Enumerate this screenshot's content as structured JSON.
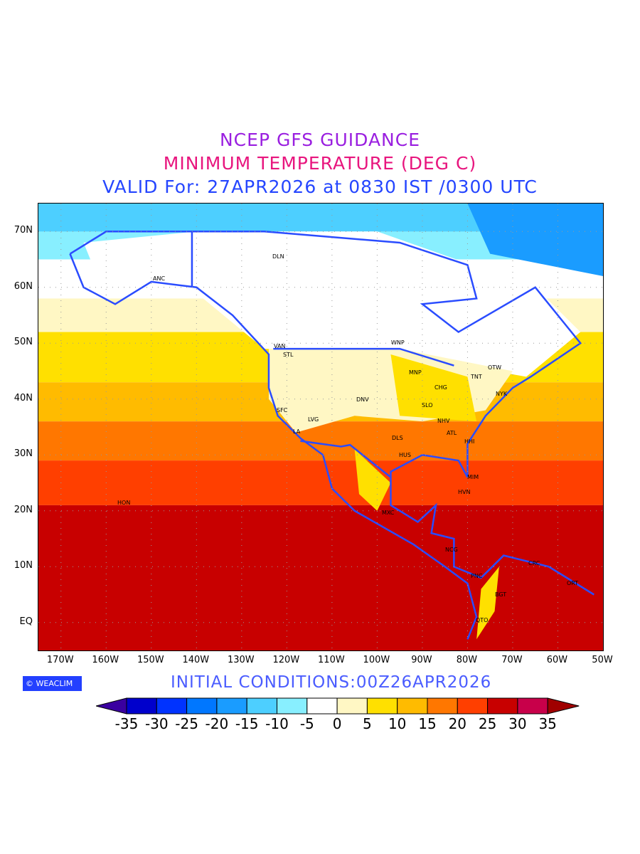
{
  "title": {
    "line1": "NCEP GFS GUIDANCE",
    "line2": "MINIMUM TEMPERATURE (DEG C)",
    "line3": "VALID For: 27APR2026 at 0830 IST /0300 UTC"
  },
  "axes": {
    "lat_labels": [
      "70N",
      "60N",
      "50N",
      "40N",
      "30N",
      "20N",
      "10N",
      "EQ"
    ],
    "lon_labels": [
      "170W",
      "160W",
      "150W",
      "140W",
      "130W",
      "120W",
      "110W",
      "100W",
      "90W",
      "80W",
      "70W",
      "60W",
      "50W"
    ]
  },
  "cities": [
    "ANC",
    "DLN",
    "VAN",
    "STL",
    "WNP",
    "MNP",
    "TNT",
    "OTW",
    "CHG",
    "NYK",
    "DNV",
    "SLO",
    "SFC",
    "LVG",
    "NHV",
    "LA",
    "ATL",
    "DLS",
    "HHI",
    "HUS",
    "MIM",
    "HVN",
    "HON",
    "MXC",
    "NCG",
    "CRC",
    "PNC",
    "ORT",
    "BGT",
    "QTO"
  ],
  "logo": "© WEACLIM",
  "initial_conditions": "INITIAL  CONDITIONS:00Z26APR2026",
  "colorbar": {
    "labels": [
      "-35",
      "-30",
      "-25",
      "-20",
      "-15",
      "-10",
      "-5",
      "0",
      "5",
      "10",
      "15",
      "20",
      "25",
      "30",
      "35"
    ],
    "colors": [
      "#0000cc",
      "#0033ff",
      "#0077ff",
      "#1a9cff",
      "#4dcfff",
      "#88efff",
      "#ffffff",
      "#fff7c4",
      "#ffe000",
      "#ffbb00",
      "#ff7700",
      "#ff3f00",
      "#c80000",
      "#c8004a"
    ],
    "under": "#3a00a0",
    "over": "#a00000"
  }
}
